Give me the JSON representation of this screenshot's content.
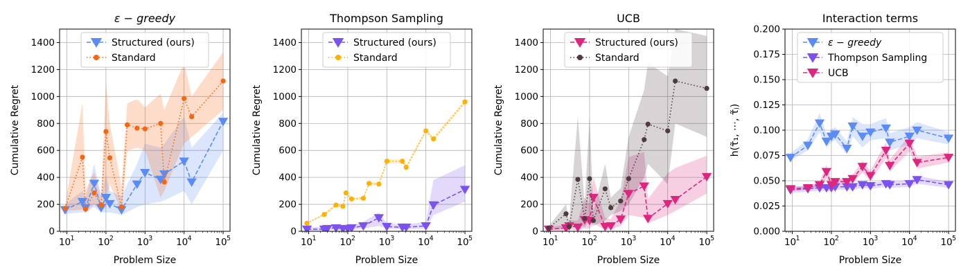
{
  "chart_data": [
    {
      "type": "line",
      "title": "ε − greedy",
      "title_style": "italic",
      "xlabel": "Problem Size",
      "ylabel": "Cumulative Regret",
      "xscale": "log",
      "xlim": [
        6.5,
        150000
      ],
      "ylim": [
        0,
        1500
      ],
      "yticks": [
        0,
        200,
        400,
        600,
        800,
        1000,
        1200,
        1400
      ],
      "xticks": [
        10,
        100,
        1000,
        10000,
        100000
      ],
      "grid": true,
      "legend_position": "top-center",
      "series": [
        {
          "name": "Structured (ours)",
          "color": "#5b8cf5",
          "line_style": "dashed",
          "marker": "triangle-down",
          "x": [
            9,
            25,
            30,
            50,
            75,
            100,
            125,
            250,
            625,
            1000,
            2500,
            3125,
            10000,
            15625,
            100000
          ],
          "y": [
            160,
            220,
            175,
            355,
            175,
            250,
            205,
            160,
            350,
            435,
            385,
            425,
            520,
            365,
            815
          ],
          "band_lower": [
            130,
            140,
            140,
            180,
            140,
            140,
            140,
            120,
            180,
            200,
            220,
            230,
            300,
            200,
            600
          ],
          "band_upper": [
            200,
            300,
            250,
            500,
            270,
            420,
            300,
            260,
            500,
            650,
            620,
            650,
            850,
            620,
            880
          ]
        },
        {
          "name": "Standard",
          "color": "#f4660f",
          "line_style": "dotted",
          "marker": "circle",
          "x": [
            9,
            25,
            30,
            50,
            75,
            100,
            125,
            250,
            350,
            625,
            1000,
            2500,
            3125,
            10000,
            15625,
            100000
          ],
          "y": [
            170,
            550,
            165,
            285,
            195,
            740,
            545,
            180,
            790,
            765,
            760,
            800,
            365,
            985,
            850,
            1115
          ],
          "band_lower": [
            150,
            160,
            140,
            200,
            150,
            180,
            350,
            150,
            600,
            620,
            600,
            250,
            300,
            650,
            700,
            900
          ],
          "band_upper": [
            200,
            950,
            300,
            440,
            250,
            1110,
            800,
            330,
            950,
            980,
            920,
            1020,
            900,
            1250,
            1000,
            1330
          ]
        }
      ]
    },
    {
      "type": "line",
      "title": "Thompson Sampling",
      "title_style": "normal",
      "xlabel": "Problem Size",
      "ylabel": "Cumulative Regret",
      "xscale": "log",
      "xlim": [
        6.5,
        150000
      ],
      "ylim": [
        0,
        1500
      ],
      "yticks": [
        0,
        200,
        400,
        600,
        800,
        1000,
        1200,
        1400
      ],
      "xticks": [
        10,
        100,
        1000,
        10000,
        100000
      ],
      "grid": true,
      "legend_position": "top-center",
      "series": [
        {
          "name": "Structured (ours)",
          "color": "#7b52ee",
          "line_style": "dashed",
          "marker": "triangle-down",
          "x": [
            9,
            25,
            30,
            50,
            75,
            100,
            125,
            250,
            625,
            1000,
            2500,
            3125,
            10000,
            15625,
            100000
          ],
          "y": [
            15,
            15,
            20,
            25,
            20,
            20,
            25,
            40,
            100,
            35,
            30,
            30,
            40,
            195,
            310
          ],
          "band_lower": [
            5,
            5,
            10,
            10,
            10,
            10,
            10,
            20,
            40,
            20,
            15,
            15,
            20,
            120,
            220
          ],
          "band_upper": [
            30,
            30,
            35,
            40,
            35,
            40,
            45,
            70,
            140,
            60,
            50,
            50,
            70,
            380,
            490
          ]
        },
        {
          "name": "Standard",
          "color": "#ffb000",
          "line_style": "dotted",
          "marker": "circle",
          "x": [
            9,
            25,
            50,
            75,
            90,
            125,
            250,
            350,
            625,
            1000,
            2500,
            3125,
            10000,
            15625,
            100000
          ],
          "y": [
            60,
            125,
            195,
            185,
            285,
            240,
            245,
            355,
            350,
            520,
            520,
            475,
            745,
            685,
            960
          ],
          "band_lower": [
            55,
            115,
            185,
            175,
            270,
            230,
            235,
            340,
            340,
            505,
            505,
            460,
            730,
            670,
            945
          ],
          "band_upper": [
            65,
            135,
            205,
            195,
            300,
            250,
            255,
            370,
            360,
            535,
            535,
            490,
            760,
            700,
            975
          ]
        }
      ]
    },
    {
      "type": "line",
      "title": "UCB",
      "title_style": "normal",
      "xlabel": "Problem Size",
      "ylabel": "Cumulative Regret",
      "xscale": "log",
      "xlim": [
        6.5,
        150000
      ],
      "ylim": [
        0,
        1500
      ],
      "yticks": [
        0,
        200,
        400,
        600,
        800,
        1000,
        1200,
        1400
      ],
      "xticks": [
        10,
        100,
        1000,
        10000,
        100000
      ],
      "grid": true,
      "legend_position": "top-center",
      "series": [
        {
          "name": "Structured (ours)",
          "color": "#dc267f",
          "line_style": "dashed",
          "marker": "triangle-down",
          "x": [
            9,
            25,
            30,
            50,
            75,
            100,
            125,
            250,
            350,
            625,
            1000,
            2500,
            3125,
            10000,
            15625,
            100000
          ],
          "y": [
            15,
            25,
            40,
            30,
            85,
            80,
            250,
            35,
            40,
            90,
            280,
            335,
            95,
            205,
            235,
            405
          ],
          "band_lower": [
            5,
            5,
            10,
            10,
            20,
            20,
            60,
            10,
            15,
            40,
            120,
            100,
            60,
            120,
            150,
            280
          ],
          "band_upper": [
            30,
            50,
            80,
            80,
            250,
            200,
            400,
            100,
            90,
            230,
            550,
            590,
            240,
            430,
            470,
            560
          ]
        },
        {
          "name": "Standard",
          "color": "#4d3b3f",
          "line_style": "dotted",
          "marker": "circle",
          "x": [
            9,
            25,
            30,
            50,
            75,
            100,
            125,
            250,
            350,
            625,
            1000,
            2500,
            3125,
            10000,
            15625,
            100000
          ],
          "y": [
            25,
            130,
            35,
            385,
            95,
            390,
            80,
            315,
            175,
            225,
            390,
            680,
            795,
            745,
            1115,
            1060
          ],
          "band_lower": [
            10,
            20,
            10,
            60,
            30,
            80,
            40,
            80,
            120,
            150,
            200,
            400,
            500,
            350,
            800,
            700
          ],
          "band_upper": [
            40,
            200,
            80,
            850,
            200,
            850,
            150,
            500,
            250,
            320,
            700,
            1050,
            1250,
            1150,
            1500,
            1450
          ]
        }
      ]
    },
    {
      "type": "line",
      "title": "Interaction terms",
      "title_style": "normal",
      "xlabel": "Problem Size",
      "ylabel": "h(τ̃₁, ⋯, τ̃ⱼ)",
      "xscale": "log",
      "xlim": [
        6.5,
        150000
      ],
      "ylim": [
        0,
        0.2
      ],
      "yticks": [
        0.0,
        0.025,
        0.05,
        0.075,
        0.1,
        0.125,
        0.15,
        0.175,
        0.2
      ],
      "ytick_labels": [
        "0.000",
        "0.025",
        "0.050",
        "0.075",
        "0.100",
        "0.125",
        "0.150",
        "0.175",
        "0.200"
      ],
      "xticks": [
        10,
        100,
        1000,
        10000,
        100000
      ],
      "grid": true,
      "legend_position": "top-center",
      "series": [
        {
          "name": "ε − greedy",
          "name_style": "italic",
          "color": "#5b8cf5",
          "line_style": "dashed",
          "marker": "triangle-down",
          "x": [
            9,
            25,
            50,
            75,
            100,
            125,
            250,
            350,
            625,
            1000,
            2500,
            3125,
            10000,
            15625,
            100000
          ],
          "y": [
            0.073,
            0.085,
            0.107,
            0.089,
            0.094,
            0.096,
            0.082,
            0.104,
            0.094,
            0.098,
            0.102,
            0.088,
            0.094,
            0.1,
            0.092
          ],
          "band_lower": [
            0.07,
            0.08,
            0.098,
            0.083,
            0.088,
            0.09,
            0.076,
            0.094,
            0.083,
            0.09,
            0.092,
            0.08,
            0.086,
            0.092,
            0.086
          ],
          "band_upper": [
            0.077,
            0.091,
            0.117,
            0.096,
            0.101,
            0.103,
            0.089,
            0.113,
            0.106,
            0.106,
            0.112,
            0.097,
            0.103,
            0.108,
            0.098
          ]
        },
        {
          "name": "Thompson Sampling",
          "color": "#7b52ee",
          "line_style": "dashed",
          "marker": "triangle-down",
          "x": [
            9,
            25,
            50,
            75,
            100,
            125,
            250,
            350,
            625,
            1000,
            2500,
            3125,
            10000,
            15625,
            100000
          ],
          "y": [
            0.041,
            0.042,
            0.043,
            0.043,
            0.043,
            0.044,
            0.044,
            0.044,
            0.046,
            0.045,
            0.047,
            0.046,
            0.047,
            0.051,
            0.046
          ],
          "band_lower": [
            0.038,
            0.039,
            0.04,
            0.04,
            0.04,
            0.041,
            0.041,
            0.041,
            0.043,
            0.042,
            0.044,
            0.043,
            0.044,
            0.047,
            0.043
          ],
          "band_upper": [
            0.044,
            0.045,
            0.046,
            0.046,
            0.046,
            0.047,
            0.047,
            0.047,
            0.049,
            0.048,
            0.05,
            0.049,
            0.05,
            0.055,
            0.049
          ]
        },
        {
          "name": "UCB",
          "color": "#dc267f",
          "line_style": "dashed",
          "marker": "triangle-down",
          "x": [
            9,
            25,
            50,
            75,
            100,
            125,
            250,
            350,
            625,
            1000,
            2500,
            3125,
            10000,
            15625,
            100000
          ],
          "y": [
            0.042,
            0.043,
            0.046,
            0.059,
            0.046,
            0.049,
            0.049,
            0.052,
            0.064,
            0.055,
            0.08,
            0.065,
            0.087,
            0.068,
            0.073
          ],
          "band_lower": [
            0.04,
            0.041,
            0.043,
            0.052,
            0.043,
            0.046,
            0.046,
            0.048,
            0.058,
            0.05,
            0.072,
            0.059,
            0.079,
            0.062,
            0.068
          ],
          "band_upper": [
            0.044,
            0.045,
            0.049,
            0.066,
            0.049,
            0.052,
            0.052,
            0.056,
            0.07,
            0.06,
            0.088,
            0.071,
            0.095,
            0.074,
            0.078
          ]
        }
      ]
    }
  ]
}
